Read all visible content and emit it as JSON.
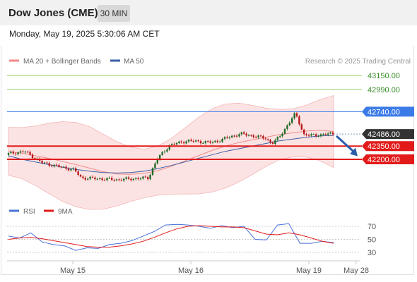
{
  "header": {
    "title": "Dow Jones (CME)",
    "timeframe": "30 MIN"
  },
  "datetime": "Monday, May 19, 2025 5:30:06 AM CET",
  "legend": {
    "bollinger": "MA 20 + Bollinger Bands",
    "ma50": "MA 50",
    "credit": "Research © 2025 Trading Central"
  },
  "rsi_legend": {
    "rsi": "RSI",
    "ma9": "9MA"
  },
  "colors": {
    "bollinger": "#f08a8a",
    "ma50": "#3b5fa8",
    "target": "#8fcf6a",
    "pivot": "#3b7be8",
    "support": "#e21a1a",
    "price": "#333333",
    "arrow": "#2b5caa",
    "rsi": "#4a72d8",
    "candle_up": "#1f6b26",
    "candle_down": "#b51a1a"
  },
  "chart_data": [
    {
      "type": "line",
      "title": "",
      "x_ticks": [
        "May 15",
        "May 16",
        "May 19",
        "May 28"
      ],
      "levels": [
        {
          "label": "43150.00",
          "value": 43150,
          "role": "target"
        },
        {
          "label": "42990.00",
          "value": 42990,
          "role": "target"
        },
        {
          "label": "42740.00",
          "value": 42740,
          "role": "pivot"
        },
        {
          "label": "42486.00",
          "value": 42486,
          "role": "price"
        },
        {
          "label": "42350.00",
          "value": 42350,
          "role": "support"
        },
        {
          "label": "42200.00",
          "value": 42200,
          "role": "support"
        }
      ],
      "series": [
        {
          "name": "MA 20 + Bollinger Bands",
          "values": [
            42290,
            42270,
            42240,
            42210,
            42175,
            42140,
            42100,
            42060,
            42035,
            42030,
            42040,
            42070,
            42120,
            42180,
            42240,
            42300,
            42350,
            42390,
            42420,
            42450,
            42480,
            42500,
            42520,
            42530,
            42515
          ]
        },
        {
          "name": "MA 50",
          "values": [
            42240,
            42200,
            42170,
            42140,
            42110,
            42085,
            42065,
            42050,
            42045,
            42050,
            42065,
            42095,
            42130,
            42170,
            42210,
            42250,
            42290,
            42320,
            42350,
            42380,
            42410,
            42430,
            42450,
            42465,
            42470
          ]
        }
      ],
      "forecast_arrow": {
        "from": 42480,
        "to": 42220
      }
    },
    {
      "type": "line",
      "title": "",
      "y_ticks": [
        70,
        50,
        30
      ],
      "series": [
        {
          "name": "RSI",
          "values": [
            55,
            52,
            60,
            46,
            42,
            40,
            33,
            37,
            36,
            42,
            44,
            48,
            55,
            62,
            72,
            73,
            72,
            70,
            67,
            71,
            68,
            70,
            50,
            49,
            72,
            74,
            44,
            44,
            47,
            45
          ]
        },
        {
          "name": "9MA",
          "values": [
            50,
            52,
            53,
            51,
            48,
            45,
            42,
            39,
            38,
            38,
            40,
            43,
            47,
            53,
            60,
            66,
            70,
            71,
            70,
            69,
            69,
            68,
            63,
            58,
            57,
            60,
            57,
            52,
            47,
            44
          ]
        }
      ]
    }
  ]
}
